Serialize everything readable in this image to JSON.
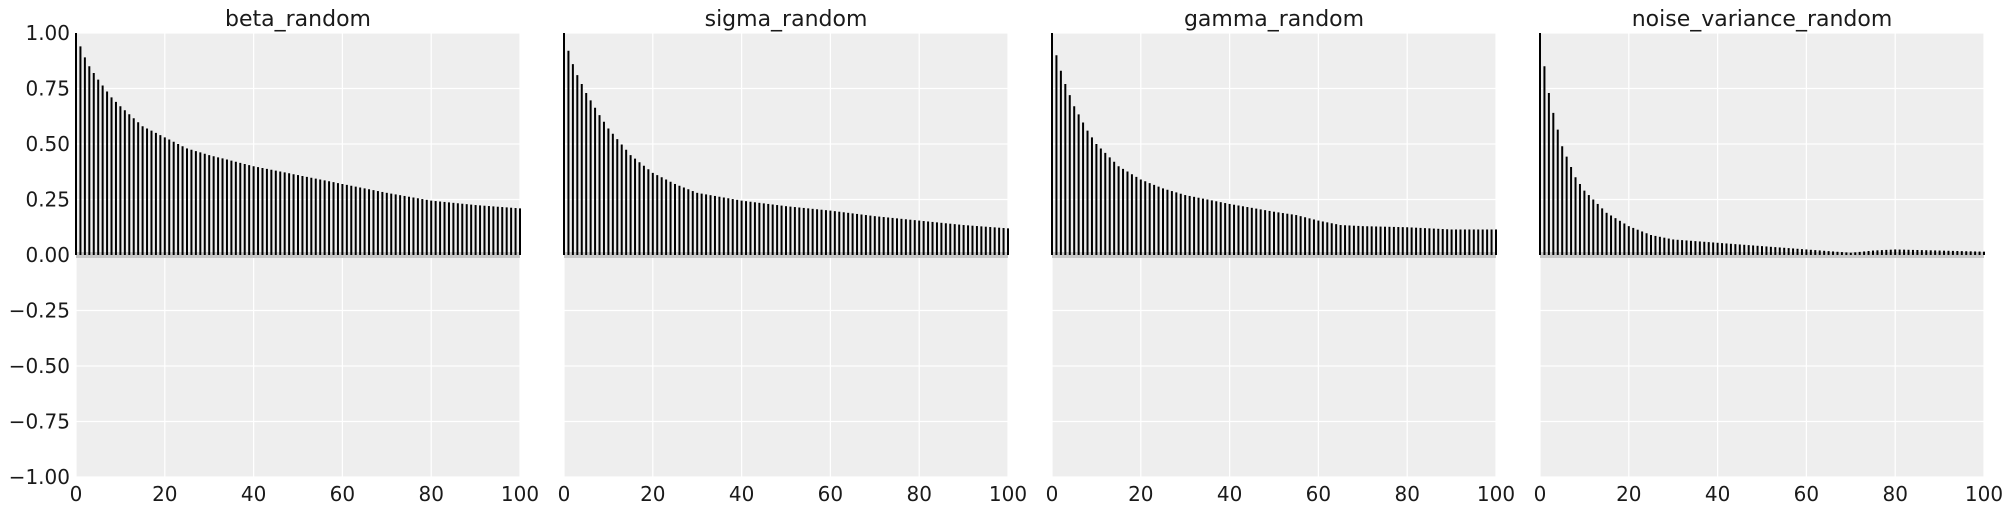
{
  "chart_data": [
    {
      "type": "bar",
      "title": "beta_random",
      "xlim": [
        0,
        100
      ],
      "ylim": [
        -1,
        1
      ],
      "xticks": [
        0,
        20,
        40,
        60,
        80,
        100
      ],
      "yticks": [
        -1,
        -0.75,
        -0.5,
        -0.25,
        0,
        0.25,
        0.5,
        0.75,
        1
      ],
      "ytick_labels": [
        "−1.00",
        "−0.75",
        "−0.50",
        "−0.25",
        "0.00",
        "0.25",
        "0.50",
        "0.75",
        "1.00"
      ],
      "grid": true,
      "lag_points": [
        [
          0,
          1.0
        ],
        [
          1,
          0.94
        ],
        [
          2,
          0.89
        ],
        [
          3,
          0.85
        ],
        [
          5,
          0.79
        ],
        [
          8,
          0.71
        ],
        [
          10,
          0.67
        ],
        [
          15,
          0.58
        ],
        [
          20,
          0.53
        ],
        [
          25,
          0.48
        ],
        [
          30,
          0.45
        ],
        [
          40,
          0.4
        ],
        [
          50,
          0.36
        ],
        [
          60,
          0.32
        ],
        [
          70,
          0.28
        ],
        [
          80,
          0.245
        ],
        [
          90,
          0.225
        ],
        [
          100,
          0.21
        ]
      ],
      "lags": [
        0,
        100
      ]
    },
    {
      "type": "bar",
      "title": "sigma_random",
      "xlim": [
        0,
        100
      ],
      "ylim": [
        -1,
        1
      ],
      "xticks": [
        0,
        20,
        40,
        60,
        80,
        100
      ],
      "grid": true,
      "lag_points": [
        [
          0,
          1.0
        ],
        [
          1,
          0.92
        ],
        [
          2,
          0.86
        ],
        [
          3,
          0.81
        ],
        [
          5,
          0.73
        ],
        [
          8,
          0.63
        ],
        [
          10,
          0.57
        ],
        [
          15,
          0.45
        ],
        [
          20,
          0.37
        ],
        [
          25,
          0.32
        ],
        [
          30,
          0.28
        ],
        [
          40,
          0.245
        ],
        [
          50,
          0.22
        ],
        [
          60,
          0.2
        ],
        [
          70,
          0.175
        ],
        [
          80,
          0.155
        ],
        [
          90,
          0.135
        ],
        [
          100,
          0.12
        ]
      ],
      "lags": [
        0,
        100
      ]
    },
    {
      "type": "bar",
      "title": "gamma_random",
      "xlim": [
        0,
        100
      ],
      "ylim": [
        -1,
        1
      ],
      "xticks": [
        0,
        20,
        40,
        60,
        80,
        100
      ],
      "grid": true,
      "lag_points": [
        [
          0,
          1.0
        ],
        [
          1,
          0.9
        ],
        [
          2,
          0.83
        ],
        [
          3,
          0.77
        ],
        [
          5,
          0.67
        ],
        [
          8,
          0.56
        ],
        [
          10,
          0.5
        ],
        [
          15,
          0.4
        ],
        [
          20,
          0.34
        ],
        [
          25,
          0.3
        ],
        [
          30,
          0.27
        ],
        [
          40,
          0.23
        ],
        [
          50,
          0.195
        ],
        [
          55,
          0.18
        ],
        [
          60,
          0.155
        ],
        [
          65,
          0.135
        ],
        [
          70,
          0.13
        ],
        [
          80,
          0.125
        ],
        [
          90,
          0.115
        ],
        [
          100,
          0.115
        ]
      ],
      "lags": [
        0,
        100
      ]
    },
    {
      "type": "bar",
      "title": "noise_variance_random",
      "xlim": [
        0,
        100
      ],
      "ylim": [
        -1,
        1
      ],
      "xticks": [
        0,
        20,
        40,
        60,
        80,
        100
      ],
      "grid": true,
      "lag_points": [
        [
          0,
          1.0
        ],
        [
          1,
          0.85
        ],
        [
          2,
          0.73
        ],
        [
          3,
          0.64
        ],
        [
          5,
          0.49
        ],
        [
          8,
          0.35
        ],
        [
          10,
          0.29
        ],
        [
          15,
          0.19
        ],
        [
          20,
          0.13
        ],
        [
          25,
          0.09
        ],
        [
          30,
          0.07
        ],
        [
          40,
          0.055
        ],
        [
          50,
          0.04
        ],
        [
          60,
          0.025
        ],
        [
          70,
          0.01
        ],
        [
          75,
          0.02
        ],
        [
          80,
          0.025
        ],
        [
          90,
          0.02
        ],
        [
          100,
          0.015
        ]
      ],
      "lags": [
        0,
        100
      ]
    }
  ]
}
